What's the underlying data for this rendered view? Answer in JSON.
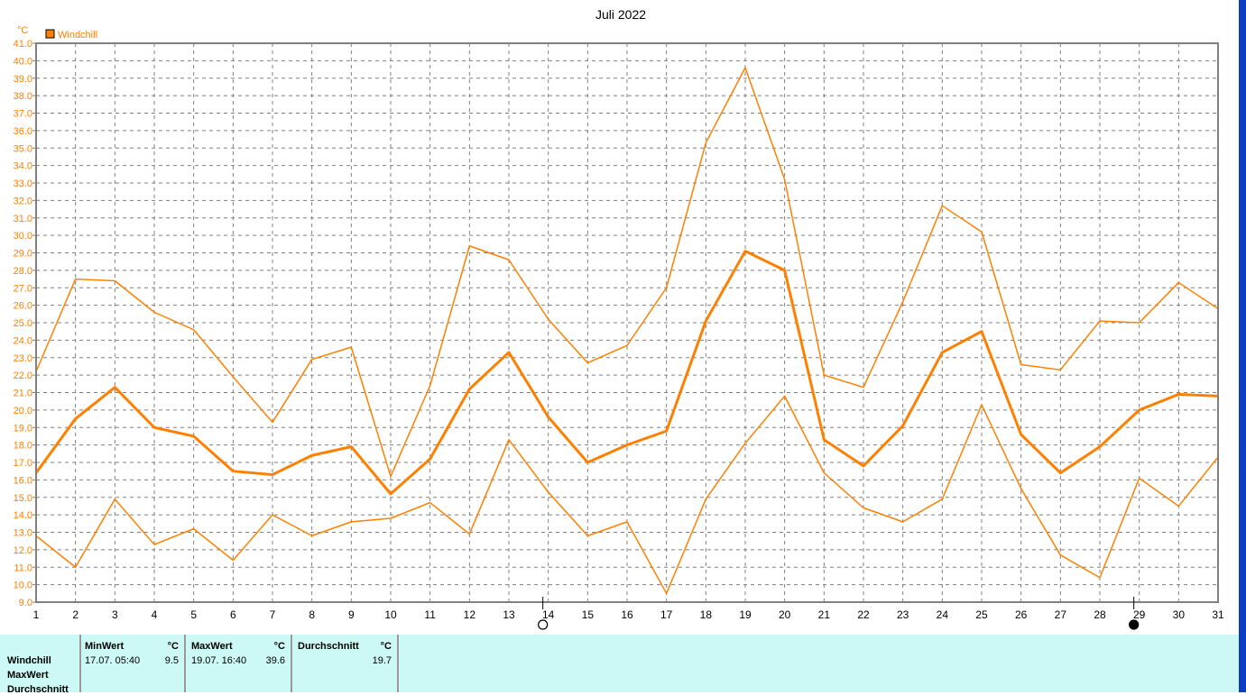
{
  "chart_data": {
    "type": "line",
    "title": "Juli 2022",
    "ylabel": "°C",
    "legend": {
      "label": "Windchill",
      "position": "top-left"
    },
    "ylim": [
      9.0,
      41.0
    ],
    "xlim": [
      1,
      31
    ],
    "grid": true,
    "color": "#ff8000",
    "x": [
      1,
      2,
      3,
      4,
      5,
      6,
      7,
      8,
      9,
      10,
      11,
      12,
      13,
      14,
      15,
      16,
      17,
      18,
      19,
      20,
      21,
      22,
      23,
      24,
      25,
      26,
      27,
      28,
      29,
      30,
      31
    ],
    "yticks": [
      "9.0",
      "10.0",
      "11.0",
      "12.0",
      "13.0",
      "14.0",
      "15.0",
      "16.0",
      "17.0",
      "18.0",
      "19.0",
      "20.0",
      "21.0",
      "22.0",
      "23.0",
      "24.0",
      "25.0",
      "26.0",
      "27.0",
      "28.0",
      "29.0",
      "30.0",
      "31.0",
      "32.0",
      "33.0",
      "34.0",
      "35.0",
      "36.0",
      "37.0",
      "38.0",
      "39.0",
      "40.0",
      "41.0"
    ],
    "series": [
      {
        "values": [
          22.2,
          27.5,
          27.4,
          25.6,
          24.6,
          21.9,
          19.3,
          22.9,
          23.6,
          16.2,
          21.4,
          29.4,
          28.6,
          25.2,
          22.7,
          23.7,
          27.0,
          35.3,
          39.6,
          33.2,
          22.0,
          21.3,
          26.2,
          31.7,
          30.2,
          22.6,
          22.3,
          25.1,
          25.0,
          27.3,
          25.8
        ]
      },
      {
        "values": [
          16.4,
          19.5,
          21.3,
          19.0,
          18.5,
          16.5,
          16.3,
          17.4,
          17.9,
          15.2,
          17.2,
          21.2,
          23.3,
          19.6,
          17.0,
          18.0,
          18.8,
          25.1,
          29.1,
          28.0,
          18.3,
          16.8,
          19.1,
          23.3,
          24.5,
          18.6,
          16.4,
          17.9,
          20.0,
          20.9,
          20.8
        ]
      },
      {
        "values": [
          12.8,
          11.0,
          14.9,
          12.3,
          13.2,
          11.4,
          14.0,
          12.8,
          13.6,
          13.8,
          14.7,
          12.9,
          18.3,
          15.3,
          12.8,
          13.6,
          9.5,
          14.9,
          18.1,
          20.8,
          16.4,
          14.4,
          13.6,
          14.9,
          20.3,
          15.5,
          11.7,
          10.4,
          16.1,
          14.5,
          17.3
        ]
      }
    ],
    "moon_phases": [
      {
        "day": 14,
        "phase": "full-moon-icon"
      },
      {
        "day": 29,
        "phase": "new-moon-icon"
      }
    ]
  },
  "table": {
    "rows": [
      "Windchill",
      "MaxWert",
      "Durchschnitt"
    ],
    "min": {
      "header": "MinWert",
      "unit": "°C",
      "time": "17.07.  05:40",
      "value": "9.5"
    },
    "max": {
      "header": "MaxWert",
      "unit": "°C",
      "time": "19.07.  16:40",
      "value": "39.6"
    },
    "avg": {
      "header": "Durchschnitt",
      "unit": "°C",
      "value": "19.7"
    }
  }
}
